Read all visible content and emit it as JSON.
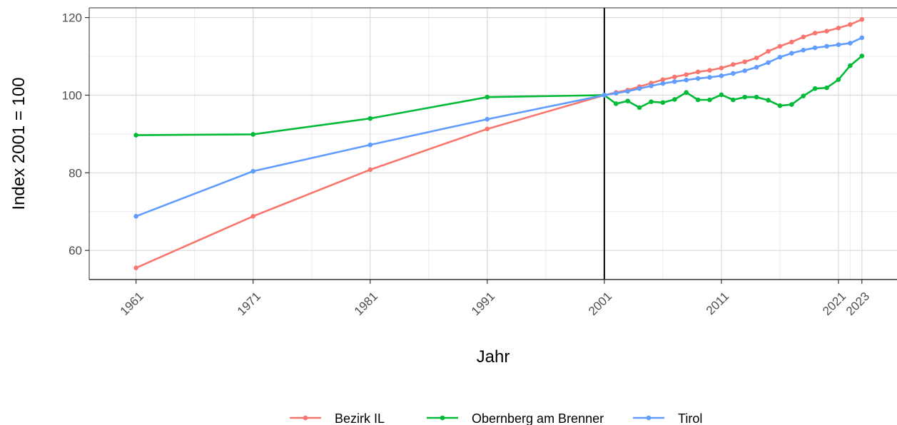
{
  "chart_data": {
    "type": "line",
    "title": "",
    "xlabel": "Jahr",
    "ylabel": "Index 2001 = 100",
    "xlim": [
      1957,
      2026
    ],
    "ylim": [
      52.5,
      122.5
    ],
    "x_ticks": [
      1961,
      1971,
      1981,
      1991,
      2001,
      2011,
      2021,
      2023
    ],
    "y_ticks": [
      60,
      80,
      100,
      120
    ],
    "grid": true,
    "reference_line_x": 2001,
    "legend_position": "bottom",
    "series": [
      {
        "name": "Bezirk IL",
        "color": "#F8766D",
        "x": [
          1961,
          1971,
          1981,
          1991,
          2001,
          2002,
          2003,
          2004,
          2005,
          2006,
          2007,
          2008,
          2009,
          2010,
          2011,
          2012,
          2013,
          2014,
          2015,
          2016,
          2017,
          2018,
          2019,
          2020,
          2021,
          2022,
          2023
        ],
        "y": [
          55.5,
          68.8,
          80.8,
          91.3,
          100,
          100.7,
          101.3,
          102.2,
          103.1,
          104,
          104.7,
          105.3,
          106,
          106.4,
          107,
          107.9,
          108.6,
          109.6,
          111.3,
          112.6,
          113.7,
          115,
          116,
          116.5,
          117.3,
          118.2,
          119.5
        ]
      },
      {
        "name": "Obernberg am Brenner",
        "color": "#00BA38",
        "x": [
          1961,
          1971,
          1981,
          1991,
          2001,
          2002,
          2003,
          2004,
          2005,
          2006,
          2007,
          2008,
          2009,
          2010,
          2011,
          2012,
          2013,
          2014,
          2015,
          2016,
          2017,
          2018,
          2019,
          2020,
          2021,
          2022,
          2023
        ],
        "y": [
          89.7,
          89.9,
          94,
          99.5,
          100,
          97.8,
          98.5,
          96.8,
          98.3,
          98.1,
          98.9,
          100.7,
          98.8,
          98.8,
          100.1,
          98.8,
          99.5,
          99.5,
          98.7,
          97.3,
          97.6,
          99.8,
          101.7,
          101.9,
          104,
          107.6,
          110.1
        ]
      },
      {
        "name": "Tirol",
        "color": "#619CFF",
        "x": [
          1961,
          1971,
          1981,
          1991,
          2001,
          2002,
          2003,
          2004,
          2005,
          2006,
          2007,
          2008,
          2009,
          2010,
          2011,
          2012,
          2013,
          2014,
          2015,
          2016,
          2017,
          2018,
          2019,
          2020,
          2021,
          2022,
          2023
        ],
        "y": [
          68.8,
          80.4,
          87.2,
          93.8,
          100,
          100.5,
          101,
          101.7,
          102.4,
          103,
          103.5,
          103.9,
          104.3,
          104.6,
          105,
          105.6,
          106.3,
          107.2,
          108.4,
          109.8,
          110.8,
          111.6,
          112.2,
          112.6,
          113,
          113.4,
          114.8
        ]
      }
    ]
  }
}
